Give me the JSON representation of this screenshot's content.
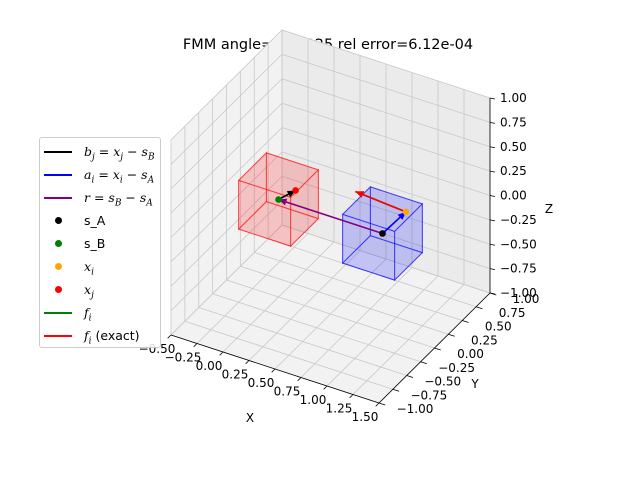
{
  "chart_data": {
    "type": "3d-line-scatter",
    "title": "FMM angle=0.62925 rel error=6.12e-04",
    "xlabel": "X",
    "ylabel": "Y",
    "zlabel": "Z",
    "xlim": [
      -0.5,
      1.5
    ],
    "ylim": [
      -1.0,
      1.0
    ],
    "zlim": [
      -1.0,
      1.0
    ],
    "x_ticks": [
      "−0.50",
      "−0.25",
      "0.00",
      "0.25",
      "0.50",
      "0.75",
      "1.00",
      "1.25",
      "1.50"
    ],
    "y_ticks": [
      "−1.00",
      "−0.75",
      "−0.50",
      "−0.25",
      "0.00",
      "0.25",
      "0.50",
      "0.75",
      "1.00"
    ],
    "z_ticks": [
      "−1.00",
      "−0.75",
      "−0.50",
      "−0.25",
      "0.00",
      "0.25",
      "0.50",
      "0.75",
      "1.00"
    ],
    "grid": true,
    "legend_position": "left",
    "legend": [
      {
        "kind": "line",
        "color": "#000000",
        "var": "b",
        "sub": "j",
        "rest_a": " = ",
        "var2": "x",
        "sub2": "j",
        "rest_b": " − ",
        "var3": "s",
        "sub3": "B"
      },
      {
        "kind": "line",
        "color": "#0000ff",
        "var": "a",
        "sub": "i",
        "rest_a": " = ",
        "var2": "x",
        "sub2": "i",
        "rest_b": " − ",
        "var3": "s",
        "sub3": "A"
      },
      {
        "kind": "line",
        "color": "#800080",
        "var": "r",
        "sub": "",
        "rest_a": " = ",
        "var2": "s",
        "sub2": "B",
        "rest_b": " − ",
        "var3": "s",
        "sub3": "A"
      },
      {
        "kind": "dot",
        "color": "#000000",
        "plain": "s_A"
      },
      {
        "kind": "dot",
        "color": "#008000",
        "plain": "s_B"
      },
      {
        "kind": "dot",
        "color": "#ffa500",
        "var": "x",
        "sub": "i"
      },
      {
        "kind": "dot",
        "color": "#ff0000",
        "var": "x",
        "sub": "j"
      },
      {
        "kind": "line",
        "color": "#008000",
        "var": "f",
        "sub": "i"
      },
      {
        "kind": "line",
        "color": "#ff0000",
        "var": "f",
        "sub": "i",
        "suffix": " (exact)"
      }
    ],
    "boxes": [
      {
        "name": "box-A",
        "color": "#0000ff",
        "center": [
          1.0,
          0.0,
          0.0
        ],
        "half": 0.25
      },
      {
        "name": "box-B",
        "color": "#ff0000",
        "center": [
          0.0,
          0.0,
          0.0
        ],
        "half": 0.25
      }
    ],
    "points": {
      "s_A": [
        1.0,
        0.0,
        0.0
      ],
      "s_B": [
        0.0,
        0.0,
        0.0
      ],
      "x_i": [
        1.14,
        0.16,
        0.18
      ],
      "x_j": [
        0.1,
        0.12,
        0.06
      ]
    },
    "vectors": [
      {
        "name": "b_j",
        "color": "#000000",
        "from": "s_B",
        "to": "x_j"
      },
      {
        "name": "a_i",
        "color": "#0000ff",
        "from": "s_A",
        "to": "x_i"
      },
      {
        "name": "r",
        "color": "#800080",
        "from": "s_A",
        "to": "s_B"
      },
      {
        "name": "f_i",
        "color": "#008000",
        "from": "x_i",
        "delta": [
          -0.55,
          0.12,
          -0.05
        ]
      },
      {
        "name": "f_i_exact",
        "color": "#ff0000",
        "from": "x_i",
        "delta": [
          -0.55,
          0.12,
          -0.05
        ]
      }
    ]
  }
}
